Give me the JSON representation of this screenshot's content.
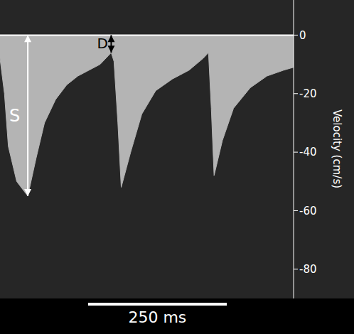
{
  "chart_data": {
    "type": "area",
    "y_label": "Velocity (cm/s)",
    "x": [
      0,
      8,
      15,
      30,
      50,
      65,
      80,
      100,
      120,
      140,
      160,
      180,
      195,
      200,
      205,
      212,
      218,
      235,
      255,
      280,
      310,
      340,
      365,
      375,
      380,
      385,
      400,
      420,
      450,
      480,
      510,
      528
    ],
    "values": [
      -8,
      -20,
      -38,
      -50,
      -55,
      -42,
      -30,
      -22,
      -17,
      -14,
      -12,
      -10,
      -7,
      -6,
      -9,
      -30,
      -52,
      -40,
      -27,
      -19,
      -15,
      -12,
      -8,
      -6,
      -25,
      -48,
      -36,
      -25,
      -18,
      -14,
      -12,
      -11
    ],
    "color": "#b4b4b4",
    "xlim": [
      0,
      528
    ],
    "ylim": [
      -90,
      12
    ],
    "yticks": [
      0,
      -20,
      -40,
      -60,
      -80
    ],
    "tick_labels": "y",
    "annotations": [
      {
        "text": "S",
        "x": 50,
        "y_from": 0,
        "y_to": -55,
        "color": "#ffffff"
      },
      {
        "text": "D",
        "x": 200,
        "y_from": 0,
        "y_to": -6,
        "color": "#000000"
      }
    ],
    "scale_bar": {
      "x": 158,
      "length": 250,
      "label": "250 ms"
    }
  }
}
